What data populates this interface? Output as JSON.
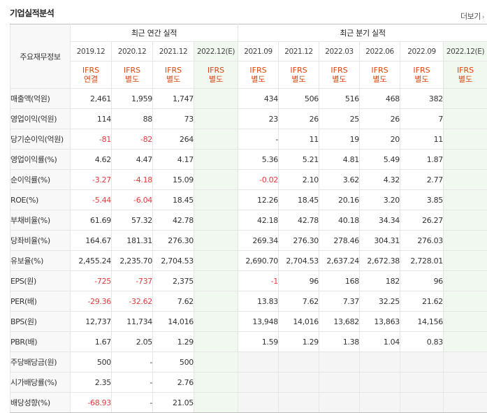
{
  "title": "기업실적분석",
  "more_link": "더보기",
  "row_header": "주요재무정보",
  "groups": {
    "annual": "최근 연간 실적",
    "quarterly": "최근 분기 실적"
  },
  "periods": [
    {
      "label": "2019.12",
      "std": [
        "IFRS",
        "연결"
      ],
      "est": false
    },
    {
      "label": "2020.12",
      "std": [
        "IFRS",
        "별도"
      ],
      "est": false
    },
    {
      "label": "2021.12",
      "std": [
        "IFRS",
        "별도"
      ],
      "est": false
    },
    {
      "label": "2022.12(E)",
      "std": [
        "IFRS",
        "별도"
      ],
      "est": true
    },
    {
      "label": "2021.09",
      "std": [
        "IFRS",
        "별도"
      ],
      "est": false
    },
    {
      "label": "2021.12",
      "std": [
        "IFRS",
        "별도"
      ],
      "est": false
    },
    {
      "label": "2022.03",
      "std": [
        "IFRS",
        "별도"
      ],
      "est": false
    },
    {
      "label": "2022.06",
      "std": [
        "IFRS",
        "별도"
      ],
      "est": false
    },
    {
      "label": "2022.09",
      "std": [
        "IFRS",
        "별도"
      ],
      "est": false
    },
    {
      "label": "2022.12(E)",
      "std": [
        "IFRS",
        "별도"
      ],
      "est": true
    }
  ],
  "rows": [
    {
      "label": "매출액(억원)",
      "values": [
        "2,461",
        "1,959",
        "1,747",
        "",
        "434",
        "506",
        "516",
        "468",
        "382",
        ""
      ]
    },
    {
      "label": "영업이익(억원)",
      "values": [
        "114",
        "88",
        "73",
        "",
        "23",
        "26",
        "25",
        "26",
        "7",
        ""
      ]
    },
    {
      "label": "당기순이익(억원)",
      "values": [
        "-81",
        "-82",
        "264",
        "",
        "-",
        "11",
        "19",
        "20",
        "11",
        ""
      ]
    },
    {
      "label": "영업이익률(%)",
      "values": [
        "4.62",
        "4.47",
        "4.17",
        "",
        "5.36",
        "5.21",
        "4.81",
        "5.49",
        "1.87",
        ""
      ]
    },
    {
      "label": "순이익률(%)",
      "values": [
        "-3.27",
        "-4.18",
        "15.09",
        "",
        "-0.02",
        "2.10",
        "3.62",
        "4.32",
        "2.77",
        ""
      ]
    },
    {
      "label": "ROE(%)",
      "values": [
        "-5.44",
        "-6.04",
        "18.45",
        "",
        "12.26",
        "18.45",
        "20.16",
        "3.20",
        "3.85",
        ""
      ]
    },
    {
      "label": "부채비율(%)",
      "values": [
        "61.69",
        "57.32",
        "42.78",
        "",
        "42.18",
        "42.78",
        "40.18",
        "34.34",
        "26.27",
        ""
      ]
    },
    {
      "label": "당좌비율(%)",
      "values": [
        "164.67",
        "181.31",
        "276.30",
        "",
        "269.34",
        "276.30",
        "278.46",
        "304.31",
        "276.03",
        ""
      ]
    },
    {
      "label": "유보율(%)",
      "values": [
        "2,455.24",
        "2,235.70",
        "2,704.53",
        "",
        "2,690.70",
        "2,704.53",
        "2,637.24",
        "2,672.38",
        "2,728.01",
        ""
      ]
    },
    {
      "label": "EPS(원)",
      "values": [
        "-725",
        "-737",
        "2,375",
        "",
        "-1",
        "96",
        "168",
        "182",
        "96",
        ""
      ]
    },
    {
      "label": "PER(배)",
      "values": [
        "-29.36",
        "-32.62",
        "7.62",
        "",
        "13.83",
        "7.62",
        "7.37",
        "32.25",
        "21.62",
        ""
      ]
    },
    {
      "label": "BPS(원)",
      "values": [
        "12,737",
        "11,734",
        "14,016",
        "",
        "13,948",
        "14,016",
        "13,682",
        "13,863",
        "14,156",
        ""
      ]
    },
    {
      "label": "PBR(배)",
      "values": [
        "1.67",
        "2.05",
        "1.29",
        "",
        "1.59",
        "1.29",
        "1.38",
        "1.04",
        "0.83",
        ""
      ]
    },
    {
      "label": "주당배당금(원)",
      "values": [
        "500",
        "-",
        "500",
        "",
        "",
        "",
        "",
        "",
        "",
        ""
      ],
      "dividend": true
    },
    {
      "label": "시가배당률(%)",
      "values": [
        "2.35",
        "-",
        "2.76",
        "",
        "",
        "",
        "",
        "",
        "",
        ""
      ],
      "dividend": true
    },
    {
      "label": "배당성향(%)",
      "values": [
        "-68.93",
        "-",
        "21.05",
        "",
        "",
        "",
        "",
        "",
        "",
        ""
      ],
      "dividend": true
    }
  ],
  "colors": {
    "negative": "#e23b3b",
    "standard_label": "#d9480f",
    "estimate_bg": "#f0f8f0",
    "label_bg": "#f8f8f8"
  }
}
